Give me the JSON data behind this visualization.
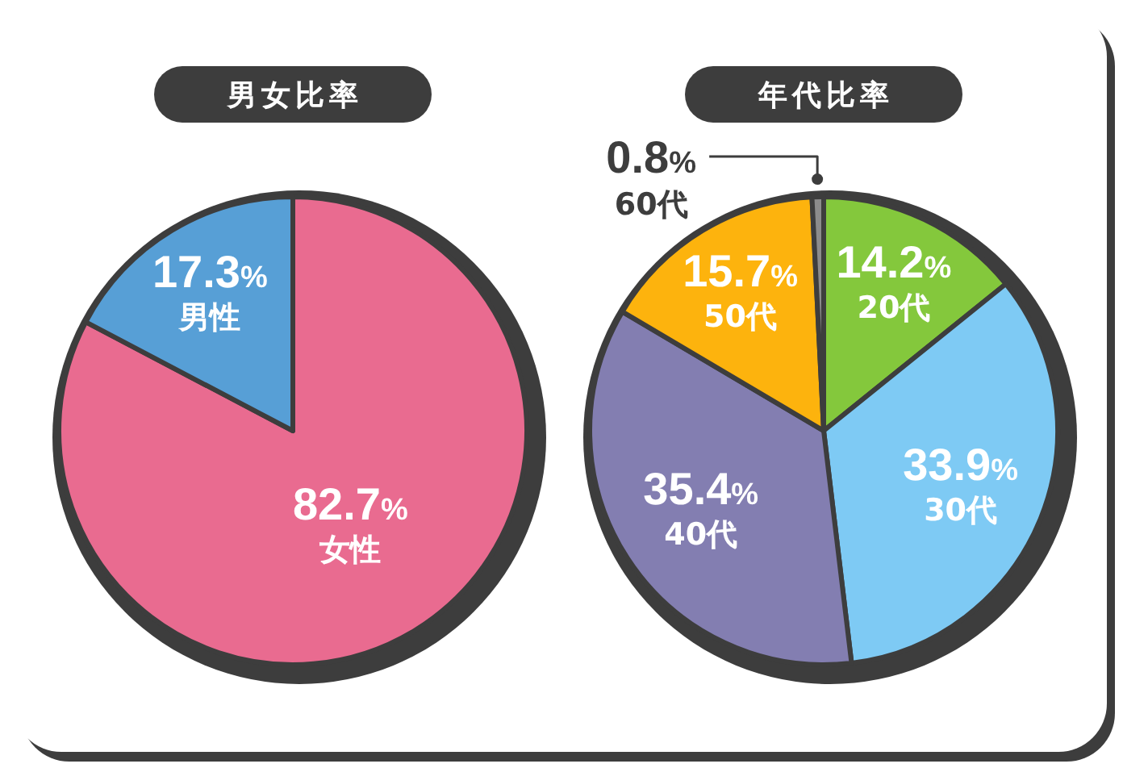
{
  "chart_data": [
    {
      "type": "pie",
      "title": "男女比率",
      "categories": [
        "女性",
        "男性"
      ],
      "values": [
        82.7,
        17.3
      ],
      "colors": [
        "#e96b90",
        "#579fd6"
      ],
      "value_labels": [
        "82.7%",
        "17.3%"
      ]
    },
    {
      "type": "pie",
      "title": "年代比率",
      "categories": [
        "20代",
        "30代",
        "40代",
        "50代",
        "60代"
      ],
      "values": [
        14.2,
        33.9,
        35.4,
        15.7,
        0.8
      ],
      "colors": [
        "#84c83c",
        "#7ecaf4",
        "#837eb1",
        "#fdb30d",
        "#8c8c8c"
      ],
      "value_labels": [
        "14.2%",
        "33.9%",
        "35.4%",
        "15.7%",
        "0.8%"
      ]
    }
  ]
}
